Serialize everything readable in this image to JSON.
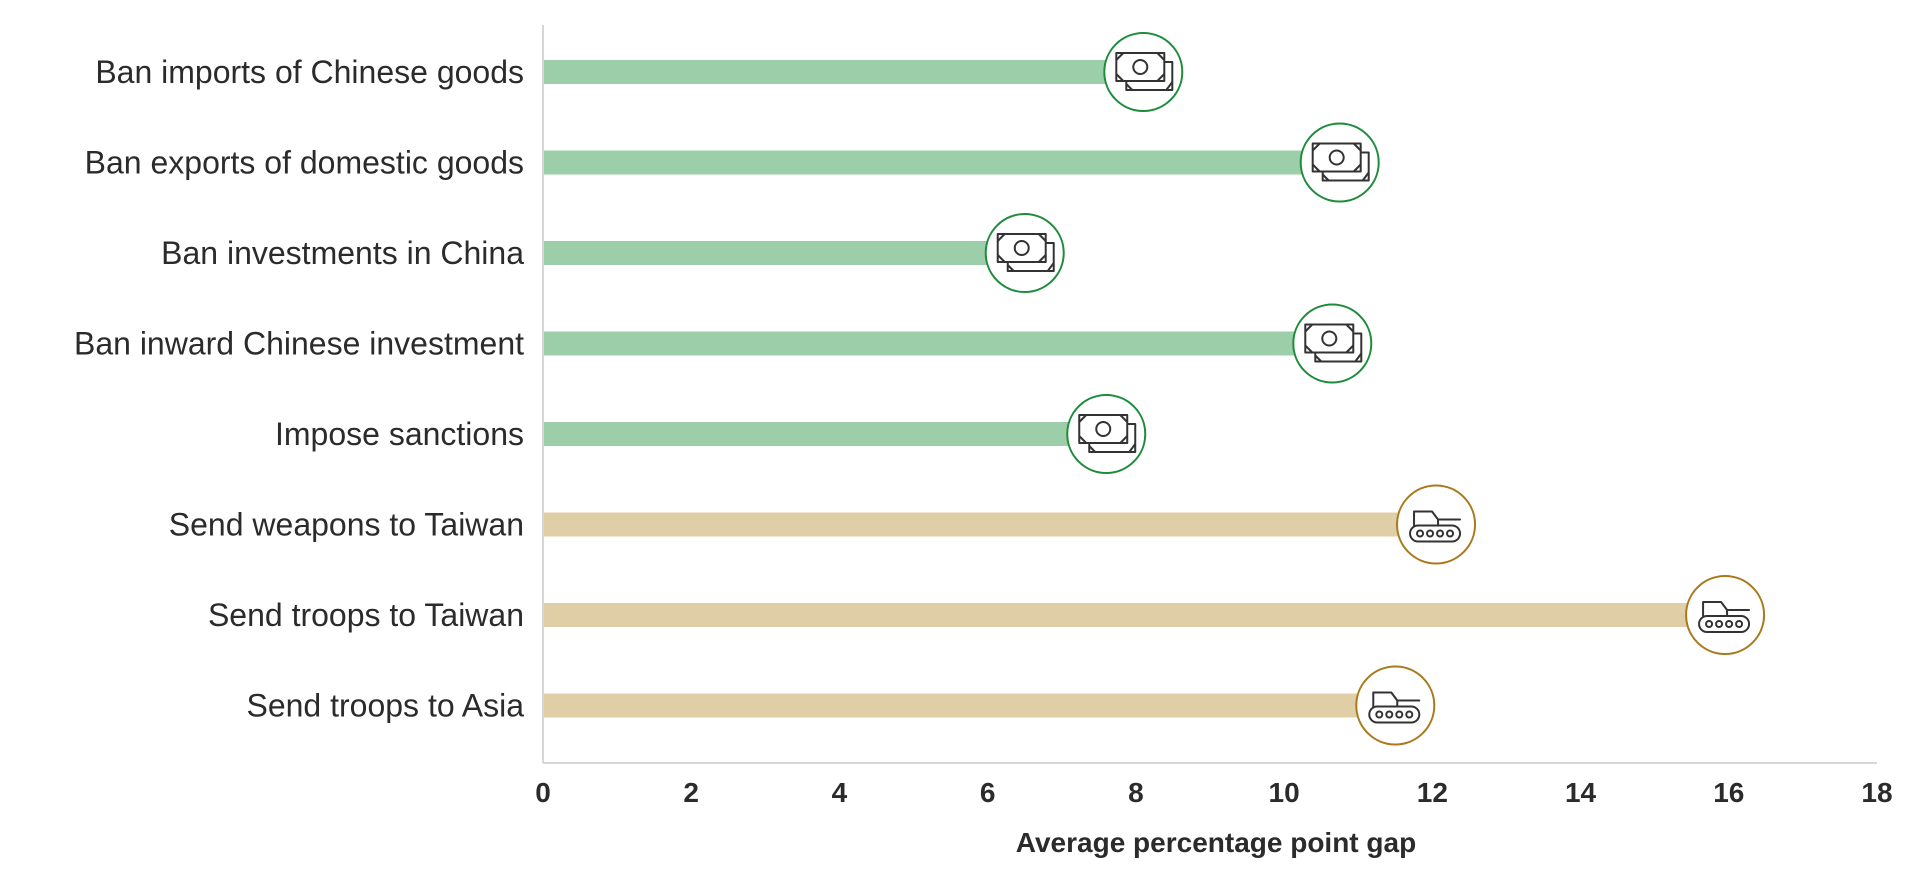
{
  "chart_data": {
    "type": "bar",
    "orientation": "horizontal",
    "categories": [
      "Ban imports of Chinese goods",
      "Ban exports of domestic goods",
      "Ban investments in China",
      "Ban inward Chinese investment",
      "Impose sanctions",
      "Send weapons to Taiwan",
      "Send troops to Taiwan",
      "Send troops to Asia"
    ],
    "values": [
      8.1,
      10.75,
      6.5,
      10.65,
      7.6,
      12.05,
      15.95,
      11.5
    ],
    "groups": [
      "economic",
      "economic",
      "economic",
      "economic",
      "economic",
      "military",
      "military",
      "military"
    ],
    "icons": [
      "money-icon",
      "money-icon",
      "money-icon",
      "money-icon",
      "money-icon",
      "tank-icon",
      "tank-icon",
      "tank-icon"
    ],
    "xlabel": "Average percentage point gap",
    "ylabel": "",
    "xlim": [
      0,
      18
    ],
    "xticks": [
      "0",
      "2",
      "4",
      "6",
      "8",
      "10",
      "12",
      "14",
      "16",
      "18"
    ],
    "grid": false,
    "colors": {
      "economic_bar": "#9ccfa9",
      "economic_ring": "#1e8c3c",
      "military_bar": "#e0cfa6",
      "military_ring": "#a9791c",
      "icon_stroke": "#333333",
      "axis": "#d6d6d6"
    }
  }
}
